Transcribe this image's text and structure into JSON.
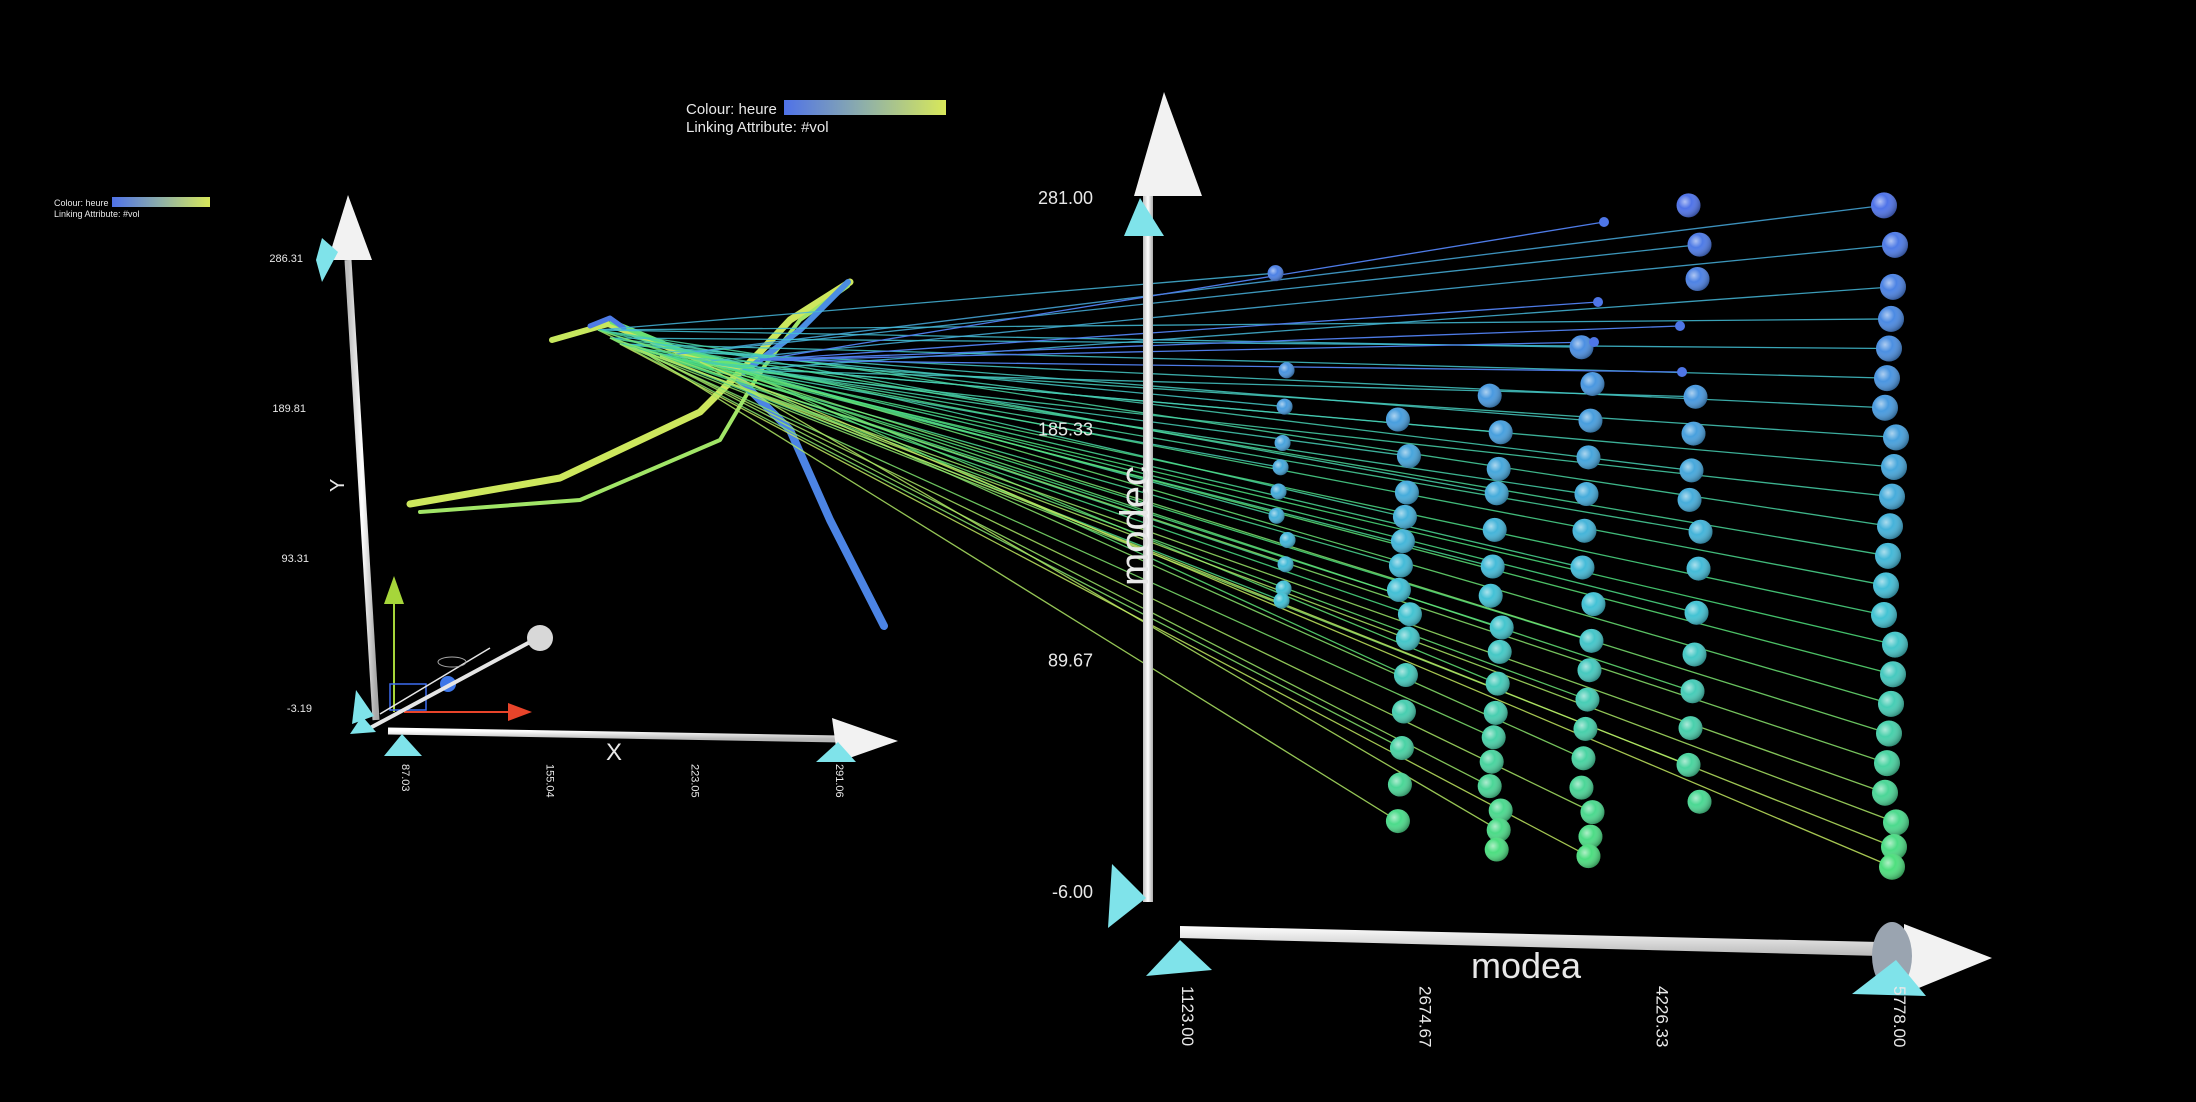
{
  "colors": {
    "background": "#000000",
    "axis": "#f2f2f2",
    "cone": "#7fe3ea",
    "x_arrow": "#e8442a",
    "y_arrow": "#a6d63a",
    "z_arrow": "#3c6cf0",
    "ramp_low": "#4f72e8",
    "ramp_mid": "#43c2d6",
    "ramp_high": "#d8e85a",
    "point_green": "#4ee07a"
  },
  "legend_main": {
    "colour_label": "Colour: heure",
    "linking_label": "Linking Attribute: #vol"
  },
  "legend_small": {
    "colour_label": "Colour: heure",
    "linking_label": "Linking Attribute: #vol"
  },
  "chart_data": [
    {
      "type": "scatter",
      "view": "3d-scatterplot-with-links",
      "xlabel": "modea",
      "ylabel": "modec",
      "color_attribute": "heure",
      "linking_attribute": "#vol",
      "x_ticks": [
        "1123.00",
        "2674.67",
        "4226.33",
        "5778.00"
      ],
      "y_ticks": [
        "281.00",
        "185.33",
        "89.67",
        "-6.00"
      ],
      "xlim": [
        1123,
        5778
      ],
      "ylim": [
        -6,
        281
      ],
      "columns": [
        {
          "x": 1800,
          "y": [
            250,
            210,
            195,
            180,
            170,
            160,
            150,
            140,
            130,
            120,
            115
          ]
        },
        {
          "x": 2600,
          "y": [
            190,
            175,
            160,
            150,
            140,
            130,
            120,
            110,
            100,
            85,
            70,
            55,
            40,
            25
          ]
        },
        {
          "x": 3200,
          "y": [
            200,
            185,
            170,
            160,
            145,
            130,
            118,
            105,
            95,
            82,
            70,
            60,
            50,
            40,
            30,
            22,
            14
          ]
        },
        {
          "x": 3800,
          "y": [
            220,
            205,
            190,
            175,
            160,
            145,
            130,
            115,
            100,
            88,
            76,
            64,
            52,
            40,
            30,
            20,
            12
          ]
        },
        {
          "x": 4500,
          "y": [
            278,
            262,
            248,
            200,
            185,
            170,
            158,
            145,
            130,
            112,
            95,
            80,
            65,
            50,
            35
          ]
        },
        {
          "x": 5778,
          "y": [
            278,
            262,
            245,
            232,
            220,
            208,
            196,
            184,
            172,
            160,
            148,
            136,
            124,
            112,
            100,
            88,
            76,
            64,
            52,
            40,
            28,
            18,
            10
          ]
        }
      ]
    },
    {
      "type": "line",
      "view": "3d-trajectory-plot",
      "xlabel": "X",
      "ylabel": "Y",
      "x_ticks": [
        "87.03",
        "155.04",
        "223.05",
        "291.06"
      ],
      "y_ticks": [
        "286.31",
        "189.81",
        "93.31",
        "-3.19"
      ],
      "xlim": [
        87.03,
        291.06
      ],
      "ylim": [
        -3.19,
        286.31
      ]
    }
  ]
}
